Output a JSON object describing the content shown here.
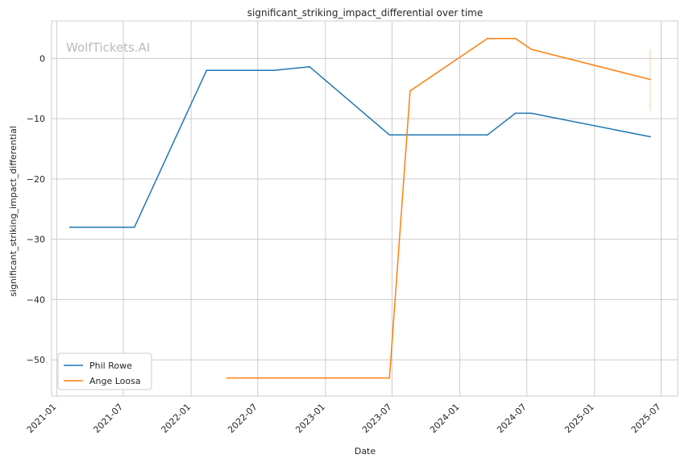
{
  "chart_data": {
    "type": "line",
    "title": "significant_striking_impact_differential over time",
    "xlabel": "Date",
    "ylabel": "significant_striking_impact_differential",
    "watermark": "WolfTickets.AI",
    "x_ticks": [
      "2021-01",
      "2021-07",
      "2022-01",
      "2022-07",
      "2023-01",
      "2023-07",
      "2024-01",
      "2024-07",
      "2025-01",
      "2025-07"
    ],
    "y_ticks": [
      0,
      -10,
      -20,
      -30,
      -40,
      -50
    ],
    "y_tick_labels": [
      "0",
      "−10",
      "−20",
      "−30",
      "−40",
      "−50"
    ],
    "xlim": [
      "2020-12-18",
      "2025-08-15"
    ],
    "ylim": [
      -56,
      6.2
    ],
    "grid": true,
    "legend_position": "lower-left",
    "series": [
      {
        "name": "Phil Rowe",
        "color": "#1f77b4",
        "points": [
          [
            "2021-02-06",
            -28
          ],
          [
            "2021-07-31",
            -28
          ],
          [
            "2022-02-12",
            -2
          ],
          [
            "2022-08-13",
            -2
          ],
          [
            "2022-11-19",
            -1.4
          ],
          [
            "2023-06-24",
            -12.7
          ],
          [
            "2024-03-16",
            -12.7
          ],
          [
            "2024-05-31",
            -9.1
          ],
          [
            "2024-07-13",
            -9.1
          ],
          [
            "2025-06-01",
            -13
          ]
        ]
      },
      {
        "name": "Ange Loosa",
        "color": "#ff7f0e",
        "points": [
          [
            "2022-04-09",
            -53
          ],
          [
            "2023-06-24",
            -53
          ],
          [
            "2023-08-19",
            -5.4
          ],
          [
            "2024-03-16",
            3.3
          ],
          [
            "2024-05-31",
            3.3
          ],
          [
            "2024-07-13",
            1.5
          ],
          [
            "2025-06-01",
            -3.5
          ]
        ]
      }
    ],
    "error_bar": {
      "series": "Ange Loosa",
      "x": "2025-06-01",
      "y_low": -8.7,
      "y_high": 1.5,
      "color": "#ff7f0e"
    }
  }
}
